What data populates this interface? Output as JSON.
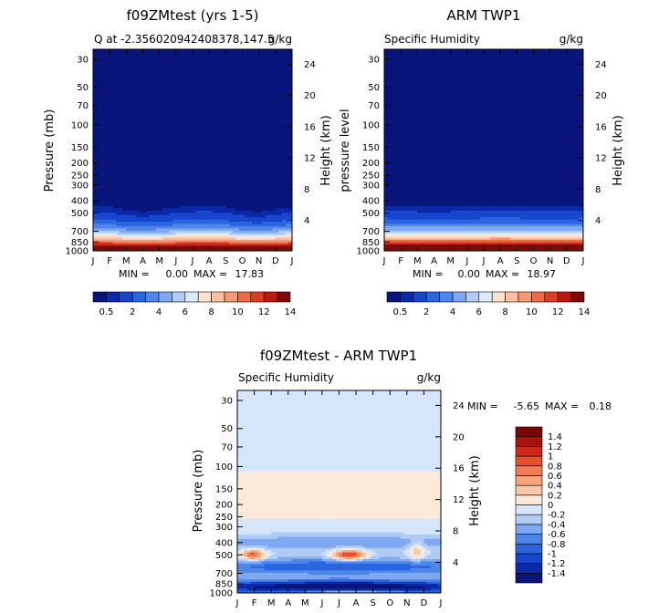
{
  "months": [
    "J",
    "F",
    "M",
    "A",
    "M",
    "J",
    "J",
    "A",
    "S",
    "O",
    "N",
    "D",
    "J"
  ],
  "pressure_ticks": [
    {
      "p": 30,
      "label": "30"
    },
    {
      "p": 50,
      "label": "50"
    },
    {
      "p": 70,
      "label": "70"
    },
    {
      "p": 100,
      "label": "100"
    },
    {
      "p": 150,
      "label": "150"
    },
    {
      "p": 200,
      "label": "200"
    },
    {
      "p": 250,
      "label": "250"
    },
    {
      "p": 300,
      "label": "300"
    },
    {
      "p": 400,
      "label": "400"
    },
    {
      "p": 500,
      "label": "500"
    },
    {
      "p": 700,
      "label": "700"
    },
    {
      "p": 850,
      "label": "850"
    },
    {
      "p": 1000,
      "label": "1000"
    }
  ],
  "height_ticks": [
    {
      "km": 4,
      "label": "4"
    },
    {
      "km": 8,
      "label": "8"
    },
    {
      "km": 12,
      "label": "12"
    },
    {
      "km": 16,
      "label": "16"
    },
    {
      "km": 20,
      "label": "20"
    },
    {
      "km": 24,
      "label": "24"
    }
  ],
  "colors": {
    "abs_scale": [
      "#08157a",
      "#0a28a8",
      "#1646cc",
      "#2b66e0",
      "#4f86ea",
      "#7ea8f2",
      "#b0ccf6",
      "#ddeaf8",
      "#fde3cf",
      "#fbc2a2",
      "#f79a73",
      "#f06a47",
      "#dd3d23",
      "#b81a10",
      "#7c0a06"
    ],
    "diff_scale": [
      "#08157a",
      "#0a28a8",
      "#1646cc",
      "#2b66e0",
      "#4f86ea",
      "#7ea8f2",
      "#b0ccf6",
      "#d5e6fa",
      "#fde9d8",
      "#fbc7a6",
      "#f8a47c",
      "#f27c55",
      "#e7502f",
      "#cc2a18",
      "#a6130c",
      "#7a0806"
    ]
  },
  "chart_data": [
    {
      "type": "heatmap",
      "title": "f09ZMtest (yrs 1-5)",
      "subtitle_left": "Q at -2.356020942408378,147.5",
      "subtitle_right": "g/kg",
      "ylabel": "Pressure (mb)",
      "ylabel_right": "Height (km)",
      "x": [
        "J",
        "F",
        "M",
        "A",
        "M",
        "J",
        "J",
        "A",
        "S",
        "O",
        "N",
        "D",
        "J"
      ],
      "ylim_mb": [
        1000,
        25
      ],
      "stats": {
        "min_label": "MIN =",
        "min": "0.00",
        "max_label": "MAX =",
        "max": "17.83"
      },
      "colorbar_labels": [
        "0.5",
        "2",
        "4",
        "6",
        "8",
        "10",
        "12",
        "14"
      ],
      "surface_max": 17.8,
      "moist_top_mb": [
        315,
        310,
        345,
        365,
        340,
        320,
        300,
        295,
        315,
        350,
        370,
        335,
        315
      ]
    },
    {
      "type": "heatmap",
      "title": "ARM TWP1",
      "subtitle_left": "Specific Humidity",
      "subtitle_right": "g/kg",
      "ylabel": "pressure level",
      "ylabel_right": "Height (km)",
      "x": [
        "J",
        "F",
        "M",
        "A",
        "M",
        "J",
        "J",
        "A",
        "S",
        "O",
        "N",
        "D",
        "J"
      ],
      "ylim_mb": [
        1000,
        25
      ],
      "stats": {
        "min_label": "MIN =",
        "min": "0.00",
        "max_label": "MAX =",
        "max": "18.97"
      },
      "colorbar_labels": [
        "0.5",
        "2",
        "4",
        "6",
        "8",
        "10",
        "12",
        "14"
      ],
      "surface_max": 19.0,
      "moist_top_mb": [
        300,
        302,
        306,
        308,
        306,
        304,
        300,
        298,
        300,
        304,
        306,
        302,
        300
      ]
    },
    {
      "type": "heatmap",
      "title": "f09ZMtest - ARM TWP1",
      "subtitle_left": "Specific Humidity",
      "subtitle_right": "g/kg",
      "ylabel": "Pressure (mb)",
      "ylabel_right": "Height (km)",
      "x": [
        "J",
        "F",
        "M",
        "A",
        "M",
        "J",
        "J",
        "A",
        "S",
        "O",
        "N",
        "D",
        "J"
      ],
      "ylim_mb": [
        1000,
        25
      ],
      "stats": {
        "min_label": "MIN =",
        "min": "-5.65",
        "max_label": "MAX =",
        "max": "0.18"
      },
      "colorbar_labels": [
        "1.4",
        "1.2",
        "1",
        "0.8",
        "0.6",
        "0.4",
        "0.2",
        "0",
        "-0.2",
        "-0.4",
        "-0.6",
        "-0.8",
        "-1",
        "-1.2",
        "-1.4"
      ]
    }
  ]
}
